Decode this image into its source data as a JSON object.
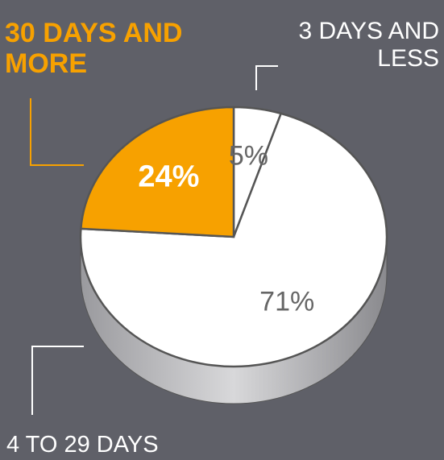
{
  "chart_data": {
    "type": "pie",
    "categories": [
      "3 DAYS AND LESS",
      "4 TO 29 DAYS",
      "30 DAYS AND MORE"
    ],
    "values": [
      5,
      71,
      24
    ],
    "value_labels": [
      "5%",
      "71%",
      "24%"
    ],
    "colors": [
      "#ffffff",
      "#ffffff",
      "#f7a100"
    ]
  }
}
